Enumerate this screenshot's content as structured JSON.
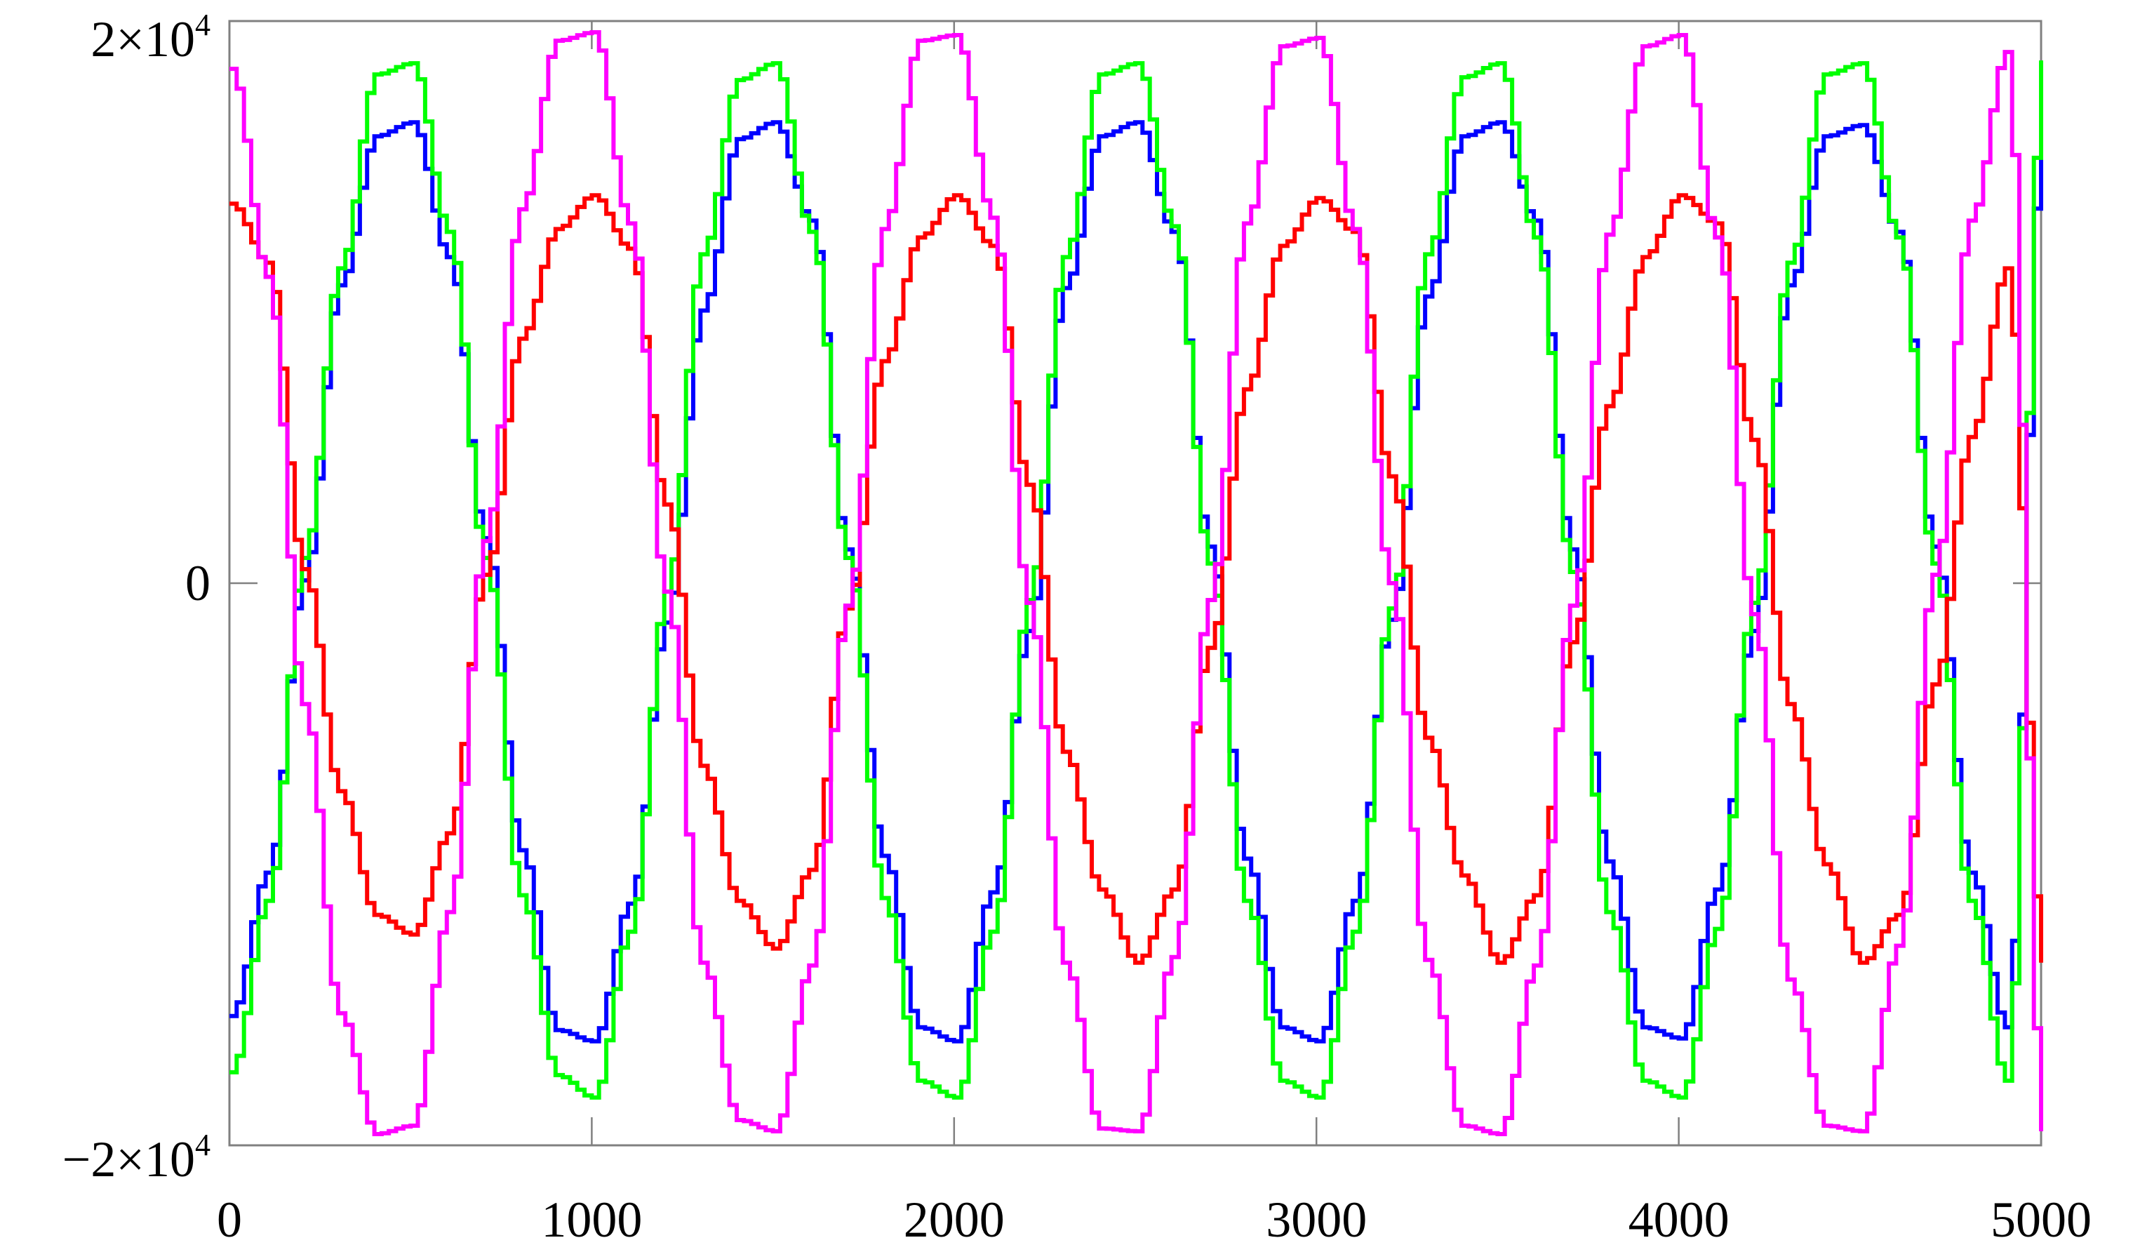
{
  "chart_data": {
    "type": "line",
    "title": "",
    "xlabel": "",
    "ylabel": "",
    "xlim": [
      0,
      5000
    ],
    "ylim": [
      -20000,
      20000
    ],
    "grid": false,
    "legend": "none",
    "x_ticks": [
      {
        "value": 0,
        "label": "0"
      },
      {
        "value": 1000,
        "label": "1000"
      },
      {
        "value": 2000,
        "label": "2000"
      },
      {
        "value": 3000,
        "label": "3000"
      },
      {
        "value": 4000,
        "label": "4000"
      },
      {
        "value": 5000,
        "label": "5000"
      }
    ],
    "y_ticks": [
      {
        "value": 20000,
        "mantissa": "2×10",
        "exponent": "4"
      },
      {
        "value": 0,
        "mantissa": "0",
        "exponent": ""
      },
      {
        "value": -20000,
        "mantissa": "−2×10",
        "exponent": "4"
      }
    ],
    "x": [
      0,
      100,
      200,
      300,
      400,
      500,
      600,
      700,
      800,
      900,
      1000,
      1100,
      1200,
      1300,
      1400,
      1500,
      1600,
      1700,
      1800,
      1900,
      2000,
      2100,
      2200,
      2300,
      2400,
      2500,
      2600,
      2700,
      2800,
      2900,
      3000,
      3100,
      3200,
      3300,
      3400,
      3500,
      3600,
      3700,
      3800,
      3900,
      4000,
      4100,
      4200,
      4300,
      4400,
      4500,
      4600,
      4700,
      4800,
      4900,
      5000
    ],
    "series": [
      {
        "color": "#0000ff",
        "values": [
          -15400,
          -10300,
          100,
          10600,
          15900,
          16400,
          11600,
          1600,
          -9500,
          -15900,
          -16300,
          -11400,
          -1400,
          9700,
          15800,
          16400,
          12900,
          1200,
          -9700,
          -15800,
          -16300,
          -11000,
          -1700,
          10500,
          15900,
          16400,
          12500,
          1300,
          -9800,
          -15800,
          -16300,
          -11300,
          -1300,
          10200,
          15900,
          16400,
          12900,
          1200,
          -9900,
          -15800,
          -16200,
          -10900,
          -1700,
          10600,
          15900,
          16300,
          12500,
          1300,
          -10300,
          -15800,
          16400
        ]
      },
      {
        "color": "#00ff00",
        "values": [
          -17400,
          -11300,
          900,
          11200,
          18100,
          18500,
          12500,
          900,
          -11100,
          -17500,
          -18300,
          -12400,
          -300,
          11700,
          17900,
          18500,
          12500,
          900,
          -11200,
          -17700,
          -18300,
          -12400,
          -600,
          11600,
          18100,
          18500,
          12700,
          700,
          -11300,
          -17700,
          -18300,
          -12400,
          -900,
          11700,
          18000,
          18500,
          12300,
          400,
          -11700,
          -17700,
          -18300,
          -12300,
          -700,
          11400,
          18100,
          18500,
          12300,
          700,
          -11300,
          -17700,
          18600
        ]
      },
      {
        "color": "#ff0000",
        "values": [
          13500,
          11400,
          500,
          -7400,
          -11800,
          -12500,
          -8900,
          300,
          8700,
          12600,
          13800,
          11900,
          2800,
          -6500,
          -11300,
          -13000,
          -10200,
          -900,
          7900,
          12300,
          13800,
          12000,
          3500,
          -6000,
          -10900,
          -13500,
          -10900,
          -2300,
          6900,
          12000,
          13700,
          12500,
          3800,
          -5500,
          -10400,
          -13500,
          -11100,
          -2100,
          6300,
          11600,
          13800,
          12800,
          5100,
          -4300,
          -10000,
          -13500,
          -11800,
          -3600,
          5200,
          11200,
          -13500
        ]
      },
      {
        "color": "#ff00ff",
        "values": [
          18300,
          10900,
          -4300,
          -15300,
          -19600,
          -19300,
          -11700,
          1500,
          13300,
          19300,
          19600,
          12800,
          -300,
          -13500,
          -19100,
          -19500,
          -13600,
          -800,
          12600,
          19300,
          19500,
          13000,
          -700,
          -13500,
          -19400,
          -19500,
          -13300,
          -600,
          12800,
          19100,
          19400,
          12600,
          0,
          -13400,
          -19300,
          -19600,
          -13600,
          -800,
          12400,
          19100,
          19500,
          12300,
          -1100,
          -14100,
          -19300,
          -19500,
          -12900,
          300,
          12900,
          18900,
          -19500
        ]
      }
    ]
  }
}
